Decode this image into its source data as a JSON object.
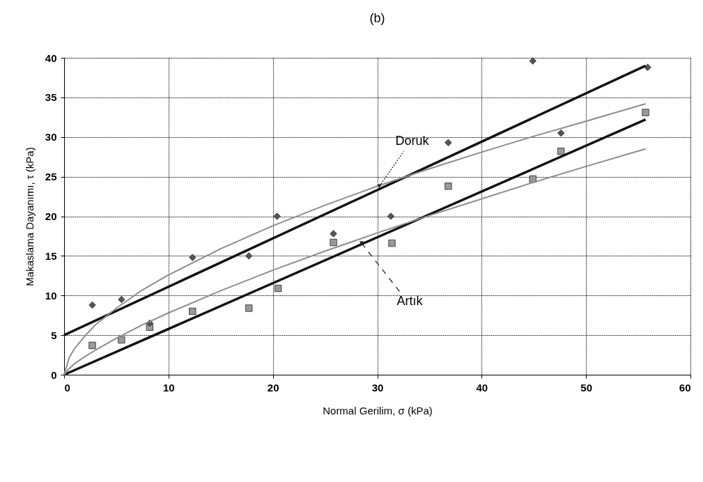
{
  "chart_data": {
    "type": "scatter",
    "title": "(b)",
    "xlabel": "Normal Gerilim, σ  (kPa)",
    "ylabel": "Makaslama Dayanımı, τ (kPa)",
    "xlim": [
      0,
      60
    ],
    "ylim": [
      0,
      40
    ],
    "xticks": [
      0,
      10,
      20,
      30,
      40,
      50,
      60
    ],
    "yticks": [
      0,
      5,
      10,
      15,
      20,
      25,
      30,
      35,
      40
    ],
    "grid": true,
    "series": [
      {
        "marker": "square",
        "color": "#9a9a9a",
        "x": [
          2.7,
          5.5,
          8.2,
          12.3,
          17.7,
          20.5,
          25.8,
          31.4,
          36.8,
          44.9,
          47.6,
          55.7
        ],
        "values": [
          3.7,
          4.4,
          6.0,
          8.0,
          8.4,
          10.9,
          16.7,
          16.6,
          23.8,
          24.7,
          28.2,
          33.1
        ]
      },
      {
        "marker": "diamond",
        "color": "#555555",
        "x": [
          2.7,
          5.5,
          8.2,
          12.3,
          17.7,
          20.4,
          25.8,
          31.3,
          36.8,
          44.9,
          47.6,
          55.9
        ],
        "values": [
          8.8,
          9.5,
          6.5,
          14.8,
          15.0,
          20.0,
          17.8,
          20.0,
          29.3,
          39.6,
          30.5,
          38.8
        ]
      },
      {
        "type": "line",
        "marker": "none",
        "line_style": "solid",
        "color": "#111111",
        "x": [
          0,
          55.7
        ],
        "values": [
          5,
          39.0
        ]
      },
      {
        "type": "line",
        "marker": "none",
        "line_style": "solid",
        "color": "#111111",
        "x": [
          0,
          55.7
        ],
        "values": [
          0,
          32.2
        ]
      },
      {
        "type": "line",
        "marker": "none",
        "line_style": "solid",
        "color": "#8c8c8c",
        "x": [
          0,
          0.5,
          1,
          2,
          3,
          5,
          7.5,
          10,
          15,
          20,
          25,
          30,
          35,
          40,
          45,
          50,
          55.7
        ],
        "values": [
          0,
          2.2,
          3.3,
          4.9,
          6.3,
          8.4,
          10.7,
          12.6,
          15.9,
          18.8,
          21.4,
          23.8,
          26.0,
          28.1,
          30.1,
          32.0,
          34.2
        ]
      },
      {
        "type": "line",
        "marker": "none",
        "line_style": "solid",
        "color": "#8c8c8c",
        "x": [
          0,
          0.5,
          1,
          2,
          3,
          5,
          7.5,
          10,
          15,
          20,
          25,
          30,
          35,
          40,
          45,
          50,
          55.7
        ],
        "values": [
          0,
          0.8,
          1.4,
          2.3,
          3.1,
          4.6,
          6.3,
          7.8,
          10.6,
          13.2,
          15.6,
          17.9,
          20.1,
          22.2,
          24.3,
          26.3,
          28.5
        ]
      }
    ],
    "annotations": [
      {
        "text": "Doruk",
        "x": 30.2,
        "y": 23.8
      },
      {
        "text": "Artık",
        "x": 28.5,
        "y": 16.6
      }
    ]
  }
}
